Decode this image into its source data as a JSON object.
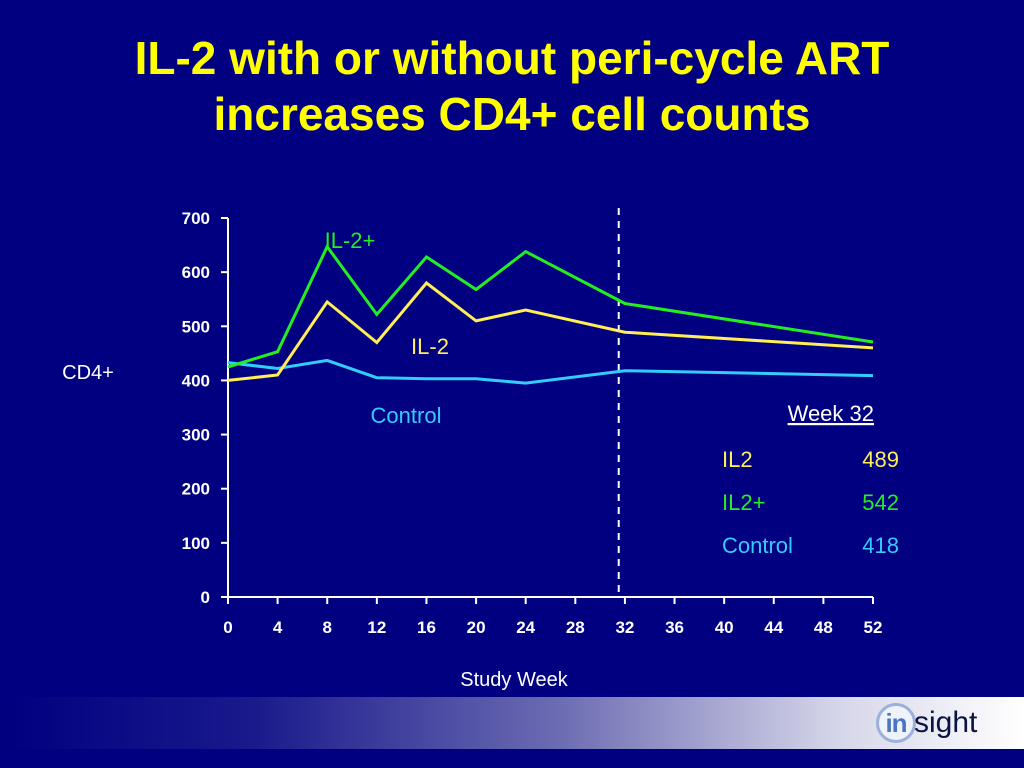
{
  "slide": {
    "title_line1": "IL-2 with or without peri-cycle ART",
    "title_line2": "increases CD4+ cell counts",
    "logo_part1": "in",
    "logo_part2": "sight"
  },
  "colors": {
    "background": "#000080",
    "title": "#FFFF00",
    "il2plus": "#22EE22",
    "il2": "#FFEE55",
    "control": "#33CCFF",
    "axis": "#FFFFFF"
  },
  "chart_data": {
    "type": "line",
    "xlabel": "Study Week",
    "ylabel": "CD4+",
    "xlim": [
      0,
      52
    ],
    "ylim": [
      0,
      700
    ],
    "xticks": [
      0,
      4,
      8,
      12,
      16,
      20,
      24,
      28,
      32,
      36,
      40,
      44,
      48,
      52
    ],
    "yticks": [
      0,
      100,
      200,
      300,
      400,
      500,
      600,
      700
    ],
    "reference_line": {
      "x": 31.5,
      "style": "dashed"
    },
    "series": [
      {
        "name": "IL-2+",
        "color": "#22EE22",
        "x": [
          0,
          4,
          8,
          12,
          16,
          20,
          24,
          32,
          52
        ],
        "y": [
          425,
          453,
          647,
          522,
          628,
          568,
          638,
          542,
          471
        ]
      },
      {
        "name": "IL-2",
        "color": "#FFEE55",
        "x": [
          0,
          4,
          8,
          12,
          16,
          20,
          24,
          32,
          52
        ],
        "y": [
          400,
          410,
          545,
          470,
          580,
          510,
          530,
          489,
          460
        ]
      },
      {
        "name": "Control",
        "color": "#33CCFF",
        "x": [
          0,
          4,
          8,
          12,
          16,
          20,
          24,
          32,
          52
        ],
        "y": [
          433,
          422,
          437,
          405,
          403,
          403,
          395,
          418,
          409
        ]
      }
    ],
    "annotations": [
      {
        "text": "IL-2+",
        "series": "IL-2+"
      },
      {
        "text": "IL-2",
        "series": "IL-2"
      },
      {
        "text": "Control",
        "series": "Control"
      }
    ],
    "summary_table": {
      "header": "Week 32",
      "rows": [
        {
          "label": "IL2",
          "value": "489",
          "color": "#FFEE55"
        },
        {
          "label": "IL2+",
          "value": "542",
          "color": "#22EE22"
        },
        {
          "label": "Control",
          "value": "418",
          "color": "#33CCFF"
        }
      ]
    }
  }
}
